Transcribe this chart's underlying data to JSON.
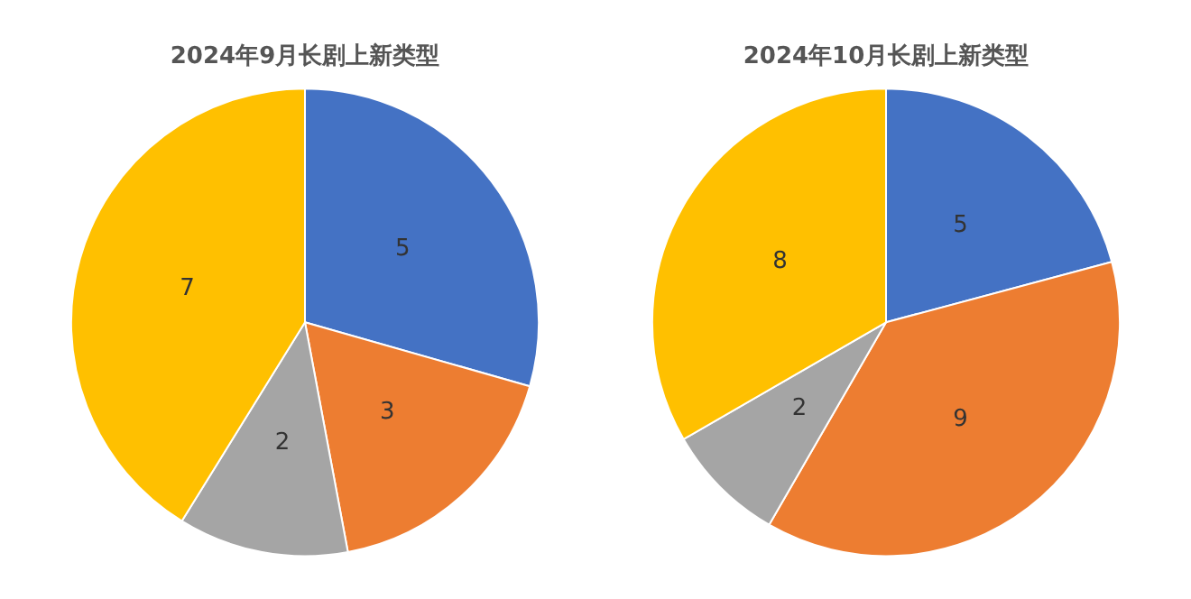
{
  "chart_data": [
    {
      "type": "pie",
      "title": "2024年9月长剧上新类型",
      "categories": [
        null,
        null,
        null,
        null
      ],
      "values": [
        5,
        3,
        2,
        7
      ],
      "colors": [
        "#4472c4",
        "#ed7d31",
        "#a5a5a5",
        "#ffc000"
      ],
      "data_labels": true
    },
    {
      "type": "pie",
      "title": "2024年10月长剧上新类型",
      "categories": [
        null,
        null,
        null,
        null
      ],
      "values": [
        5,
        9,
        2,
        8
      ],
      "colors": [
        "#4472c4",
        "#ed7d31",
        "#a5a5a5",
        "#ffc000"
      ],
      "data_labels": true
    }
  ]
}
